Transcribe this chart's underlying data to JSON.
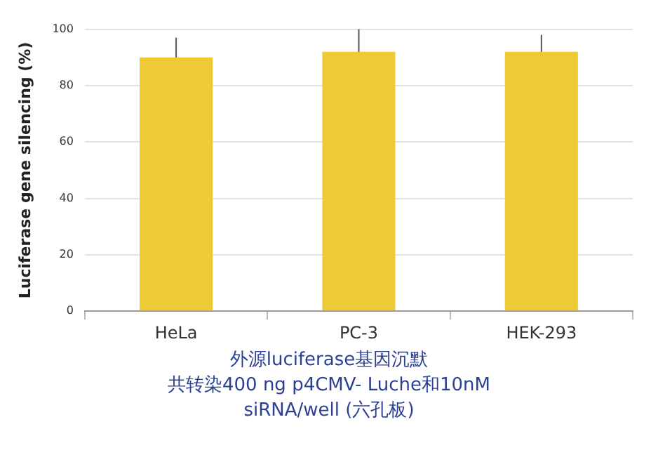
{
  "chart_data": {
    "type": "bar",
    "title": "外源luciferase基因沉默",
    "subtitle": "共转染400 ng p4CMV- Luche和10nM siRNA/well (六孔板)",
    "ylabel": "Luciferase gene silencing (%)",
    "categories": [
      "HeLa",
      "PC-3",
      "HEK-293"
    ],
    "values": [
      90,
      92,
      92
    ],
    "errors": [
      7,
      8,
      6
    ],
    "color": "#eecb35",
    "ylim": [
      0,
      100
    ],
    "yticks": [
      0,
      20,
      40,
      60,
      80,
      100
    ],
    "grid": "y"
  }
}
